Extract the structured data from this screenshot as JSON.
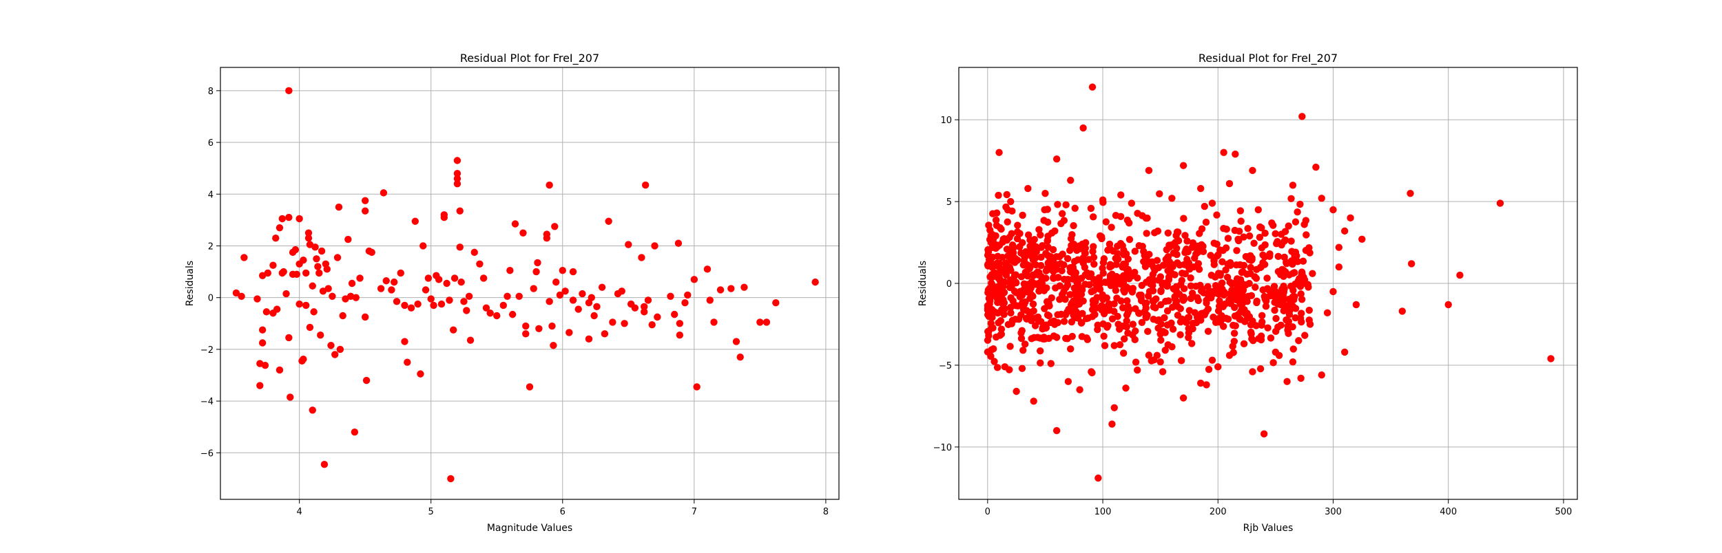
{
  "chart_data": [
    {
      "type": "scatter",
      "title": "Residual Plot for FreI_207",
      "xlabel": "Magnitude Values",
      "ylabel": "Residuals",
      "xlim": [
        3.4,
        8.1
      ],
      "ylim": [
        -7.8,
        8.9
      ],
      "xticks": [
        4,
        5,
        6,
        7,
        8
      ],
      "yticks": [
        -6,
        -4,
        -2,
        0,
        2,
        4,
        6,
        8
      ],
      "grid": true,
      "marker_color": "#ff0000",
      "points": [
        [
          3.52,
          0.18
        ],
        [
          3.56,
          0.05
        ],
        [
          3.58,
          1.55
        ],
        [
          3.68,
          -0.05
        ],
        [
          3.7,
          -2.55
        ],
        [
          3.7,
          -3.4
        ],
        [
          3.72,
          -1.25
        ],
        [
          3.72,
          -1.75
        ],
        [
          3.72,
          0.85
        ],
        [
          3.74,
          -2.62
        ],
        [
          3.75,
          -0.55
        ],
        [
          3.76,
          0.95
        ],
        [
          3.8,
          -0.6
        ],
        [
          3.8,
          1.25
        ],
        [
          3.82,
          2.3
        ],
        [
          3.83,
          -0.45
        ],
        [
          3.85,
          2.7
        ],
        [
          3.85,
          -2.8
        ],
        [
          3.87,
          3.05
        ],
        [
          3.87,
          0.95
        ],
        [
          3.88,
          1.0
        ],
        [
          3.9,
          0.15
        ],
        [
          3.92,
          3.1
        ],
        [
          3.92,
          8.0
        ],
        [
          3.92,
          -1.55
        ],
        [
          3.93,
          -3.85
        ],
        [
          3.95,
          1.75
        ],
        [
          3.95,
          0.9
        ],
        [
          3.97,
          1.85
        ],
        [
          3.98,
          0.9
        ],
        [
          4.0,
          3.05
        ],
        [
          4.0,
          -0.25
        ],
        [
          4.0,
          1.3
        ],
        [
          4.02,
          -2.45
        ],
        [
          4.03,
          -2.38
        ],
        [
          4.03,
          1.45
        ],
        [
          4.05,
          -0.3
        ],
        [
          4.05,
          0.95
        ],
        [
          4.07,
          2.5
        ],
        [
          4.07,
          2.3
        ],
        [
          4.08,
          2.05
        ],
        [
          4.08,
          -1.15
        ],
        [
          4.1,
          -4.35
        ],
        [
          4.1,
          0.45
        ],
        [
          4.11,
          -0.55
        ],
        [
          4.12,
          1.95
        ],
        [
          4.13,
          1.5
        ],
        [
          4.14,
          1.2
        ],
        [
          4.15,
          0.95
        ],
        [
          4.16,
          -1.45
        ],
        [
          4.17,
          1.8
        ],
        [
          4.18,
          0.25
        ],
        [
          4.19,
          -6.45
        ],
        [
          4.2,
          1.3
        ],
        [
          4.21,
          1.1
        ],
        [
          4.22,
          0.35
        ],
        [
          4.24,
          -1.85
        ],
        [
          4.25,
          0.05
        ],
        [
          4.27,
          -2.2
        ],
        [
          4.29,
          1.55
        ],
        [
          4.3,
          3.5
        ],
        [
          4.31,
          -2.0
        ],
        [
          4.33,
          -0.7
        ],
        [
          4.35,
          -0.05
        ],
        [
          4.37,
          2.25
        ],
        [
          4.39,
          0.05
        ],
        [
          4.4,
          0.55
        ],
        [
          4.42,
          -5.2
        ],
        [
          4.43,
          0.0
        ],
        [
          4.46,
          0.75
        ],
        [
          4.5,
          3.35
        ],
        [
          4.5,
          3.75
        ],
        [
          4.5,
          -0.75
        ],
        [
          4.51,
          -3.2
        ],
        [
          4.53,
          1.8
        ],
        [
          4.55,
          1.75
        ],
        [
          4.62,
          0.35
        ],
        [
          4.64,
          4.05
        ],
        [
          4.66,
          0.65
        ],
        [
          4.7,
          0.3
        ],
        [
          4.72,
          0.6
        ],
        [
          4.74,
          -0.15
        ],
        [
          4.77,
          0.95
        ],
        [
          4.8,
          -0.3
        ],
        [
          4.8,
          -1.7
        ],
        [
          4.82,
          -2.5
        ],
        [
          4.85,
          -0.4
        ],
        [
          4.88,
          2.95
        ],
        [
          4.9,
          -0.25
        ],
        [
          4.92,
          -2.95
        ],
        [
          4.94,
          2.0
        ],
        [
          4.96,
          0.3
        ],
        [
          4.98,
          0.75
        ],
        [
          5.0,
          -0.05
        ],
        [
          5.02,
          -0.3
        ],
        [
          5.04,
          0.85
        ],
        [
          5.06,
          0.7
        ],
        [
          5.08,
          -0.25
        ],
        [
          5.1,
          3.1
        ],
        [
          5.1,
          3.2
        ],
        [
          5.12,
          0.55
        ],
        [
          5.14,
          -0.1
        ],
        [
          5.15,
          -7.0
        ],
        [
          5.17,
          -1.25
        ],
        [
          5.18,
          0.75
        ],
        [
          5.2,
          4.6
        ],
        [
          5.2,
          4.8
        ],
        [
          5.2,
          4.4
        ],
        [
          5.2,
          5.3
        ],
        [
          5.22,
          3.35
        ],
        [
          5.22,
          1.95
        ],
        [
          5.23,
          0.6
        ],
        [
          5.25,
          -0.15
        ],
        [
          5.27,
          -0.5
        ],
        [
          5.29,
          0.05
        ],
        [
          5.3,
          -1.65
        ],
        [
          5.33,
          1.75
        ],
        [
          5.37,
          1.3
        ],
        [
          5.4,
          0.75
        ],
        [
          5.42,
          -0.4
        ],
        [
          5.45,
          -0.6
        ],
        [
          5.5,
          -0.7
        ],
        [
          5.55,
          -0.3
        ],
        [
          5.58,
          0.05
        ],
        [
          5.6,
          1.05
        ],
        [
          5.62,
          -0.65
        ],
        [
          5.64,
          2.85
        ],
        [
          5.67,
          0.05
        ],
        [
          5.7,
          2.5
        ],
        [
          5.72,
          -1.1
        ],
        [
          5.72,
          -1.4
        ],
        [
          5.75,
          -3.45
        ],
        [
          5.78,
          0.35
        ],
        [
          5.8,
          1.0
        ],
        [
          5.81,
          1.35
        ],
        [
          5.82,
          -1.2
        ],
        [
          5.88,
          2.3
        ],
        [
          5.88,
          2.45
        ],
        [
          5.9,
          4.35
        ],
        [
          5.9,
          -0.15
        ],
        [
          5.92,
          -1.1
        ],
        [
          5.93,
          -1.85
        ],
        [
          5.94,
          2.75
        ],
        [
          5.95,
          0.6
        ],
        [
          5.98,
          0.1
        ],
        [
          6.0,
          1.05
        ],
        [
          6.02,
          0.25
        ],
        [
          6.05,
          -1.35
        ],
        [
          6.08,
          1.0
        ],
        [
          6.08,
          -0.1
        ],
        [
          6.12,
          -0.45
        ],
        [
          6.15,
          0.15
        ],
        [
          6.2,
          -1.6
        ],
        [
          6.2,
          -0.2
        ],
        [
          6.22,
          0.0
        ],
        [
          6.24,
          -0.7
        ],
        [
          6.26,
          -0.35
        ],
        [
          6.3,
          0.4
        ],
        [
          6.32,
          -1.4
        ],
        [
          6.35,
          2.95
        ],
        [
          6.38,
          -0.95
        ],
        [
          6.42,
          0.15
        ],
        [
          6.45,
          0.25
        ],
        [
          6.47,
          -1.0
        ],
        [
          6.5,
          2.05
        ],
        [
          6.52,
          -0.25
        ],
        [
          6.55,
          -0.4
        ],
        [
          6.6,
          1.55
        ],
        [
          6.62,
          -0.55
        ],
        [
          6.62,
          -0.35
        ],
        [
          6.63,
          4.35
        ],
        [
          6.65,
          -0.1
        ],
        [
          6.68,
          -1.05
        ],
        [
          6.7,
          2.0
        ],
        [
          6.72,
          -0.75
        ],
        [
          6.82,
          0.05
        ],
        [
          6.85,
          -0.65
        ],
        [
          6.88,
          2.1
        ],
        [
          6.89,
          -1.0
        ],
        [
          6.89,
          -1.45
        ],
        [
          6.93,
          -0.2
        ],
        [
          6.95,
          0.1
        ],
        [
          7.0,
          0.7
        ],
        [
          7.02,
          -3.45
        ],
        [
          7.1,
          1.1
        ],
        [
          7.12,
          -0.1
        ],
        [
          7.15,
          -0.95
        ],
        [
          7.2,
          0.3
        ],
        [
          7.28,
          0.35
        ],
        [
          7.32,
          -1.7
        ],
        [
          7.35,
          -2.3
        ],
        [
          7.38,
          0.4
        ],
        [
          7.5,
          -0.95
        ],
        [
          7.55,
          -0.95
        ],
        [
          7.62,
          -0.2
        ],
        [
          7.92,
          0.6
        ]
      ]
    },
    {
      "type": "scatter",
      "title": "Residual Plot for FreI_207",
      "xlabel": "Rjb Values",
      "ylabel": "Residuals",
      "xlim": [
        -25,
        512
      ],
      "ylim": [
        -13.2,
        13.2
      ],
      "xticks": [
        0,
        100,
        200,
        300,
        400,
        500
      ],
      "yticks": [
        -10,
        -5,
        0,
        5,
        10
      ],
      "grid": true,
      "marker_color": "#ff0000",
      "dense_cluster": {
        "x": [
          0,
          280
        ],
        "y": [
          -5.5,
          5.5
        ],
        "n": 1100
      },
      "points": [
        [
          91,
          12.0
        ],
        [
          83,
          9.5
        ],
        [
          273,
          10.2
        ],
        [
          10,
          8.0
        ],
        [
          205,
          8.0
        ],
        [
          215,
          7.9
        ],
        [
          285,
          7.1
        ],
        [
          60,
          7.6
        ],
        [
          140,
          6.9
        ],
        [
          230,
          6.9
        ],
        [
          72,
          6.3
        ],
        [
          210,
          6.1
        ],
        [
          265,
          6.0
        ],
        [
          170,
          7.2
        ],
        [
          185,
          5.8
        ],
        [
          290,
          5.2
        ],
        [
          367,
          5.5
        ],
        [
          445,
          4.9
        ],
        [
          300,
          4.5
        ],
        [
          325,
          2.7
        ],
        [
          305,
          2.2
        ],
        [
          368,
          1.2
        ],
        [
          410,
          0.5
        ],
        [
          320,
          -1.3
        ],
        [
          360,
          -1.7
        ],
        [
          400,
          -1.3
        ],
        [
          489,
          -4.6
        ],
        [
          310,
          -4.2
        ],
        [
          290,
          -5.6
        ],
        [
          272,
          -5.8
        ],
        [
          240,
          -9.2
        ],
        [
          96,
          -11.9
        ],
        [
          108,
          -8.6
        ],
        [
          110,
          -7.6
        ],
        [
          60,
          -9.0
        ],
        [
          80,
          -6.5
        ],
        [
          170,
          -7.0
        ],
        [
          185,
          -6.1
        ],
        [
          190,
          -6.2
        ],
        [
          260,
          -6.0
        ],
        [
          265,
          -4.8
        ],
        [
          120,
          -6.4
        ],
        [
          200,
          -5.1
        ],
        [
          25,
          -6.6
        ],
        [
          40,
          -7.2
        ],
        [
          230,
          -5.4
        ],
        [
          5,
          -4.0
        ],
        [
          15,
          -5.1
        ],
        [
          12,
          -2.8
        ],
        [
          30,
          -5.2
        ],
        [
          55,
          -4.9
        ],
        [
          70,
          -6.0
        ],
        [
          90,
          -5.4
        ],
        [
          130,
          -5.3
        ],
        [
          150,
          -4.8
        ],
        [
          210,
          -4.4
        ],
        [
          250,
          -4.2
        ],
        [
          270,
          -3.5
        ],
        [
          280,
          -2.5
        ],
        [
          295,
          -1.8
        ],
        [
          300,
          -0.5
        ],
        [
          305,
          1.0
        ],
        [
          310,
          3.2
        ],
        [
          315,
          4.0
        ],
        [
          275,
          3.6
        ],
        [
          255,
          3.0
        ],
        [
          235,
          4.5
        ],
        [
          220,
          3.8
        ],
        [
          195,
          4.9
        ],
        [
          160,
          5.2
        ],
        [
          125,
          4.9
        ],
        [
          100,
          5.1
        ],
        [
          50,
          5.5
        ],
        [
          35,
          5.8
        ],
        [
          20,
          5.0
        ],
        [
          8,
          4.3
        ],
        [
          3,
          2.5
        ],
        [
          2,
          -1.5
        ],
        [
          180,
          2.2
        ],
        [
          190,
          -1.2
        ],
        [
          245,
          1.8
        ],
        [
          262,
          -1.9
        ],
        [
          282,
          0.6
        ],
        [
          230,
          -2.3
        ],
        [
          150,
          -3.1
        ],
        [
          110,
          -3.8
        ],
        [
          60,
          -3.3
        ]
      ]
    }
  ]
}
